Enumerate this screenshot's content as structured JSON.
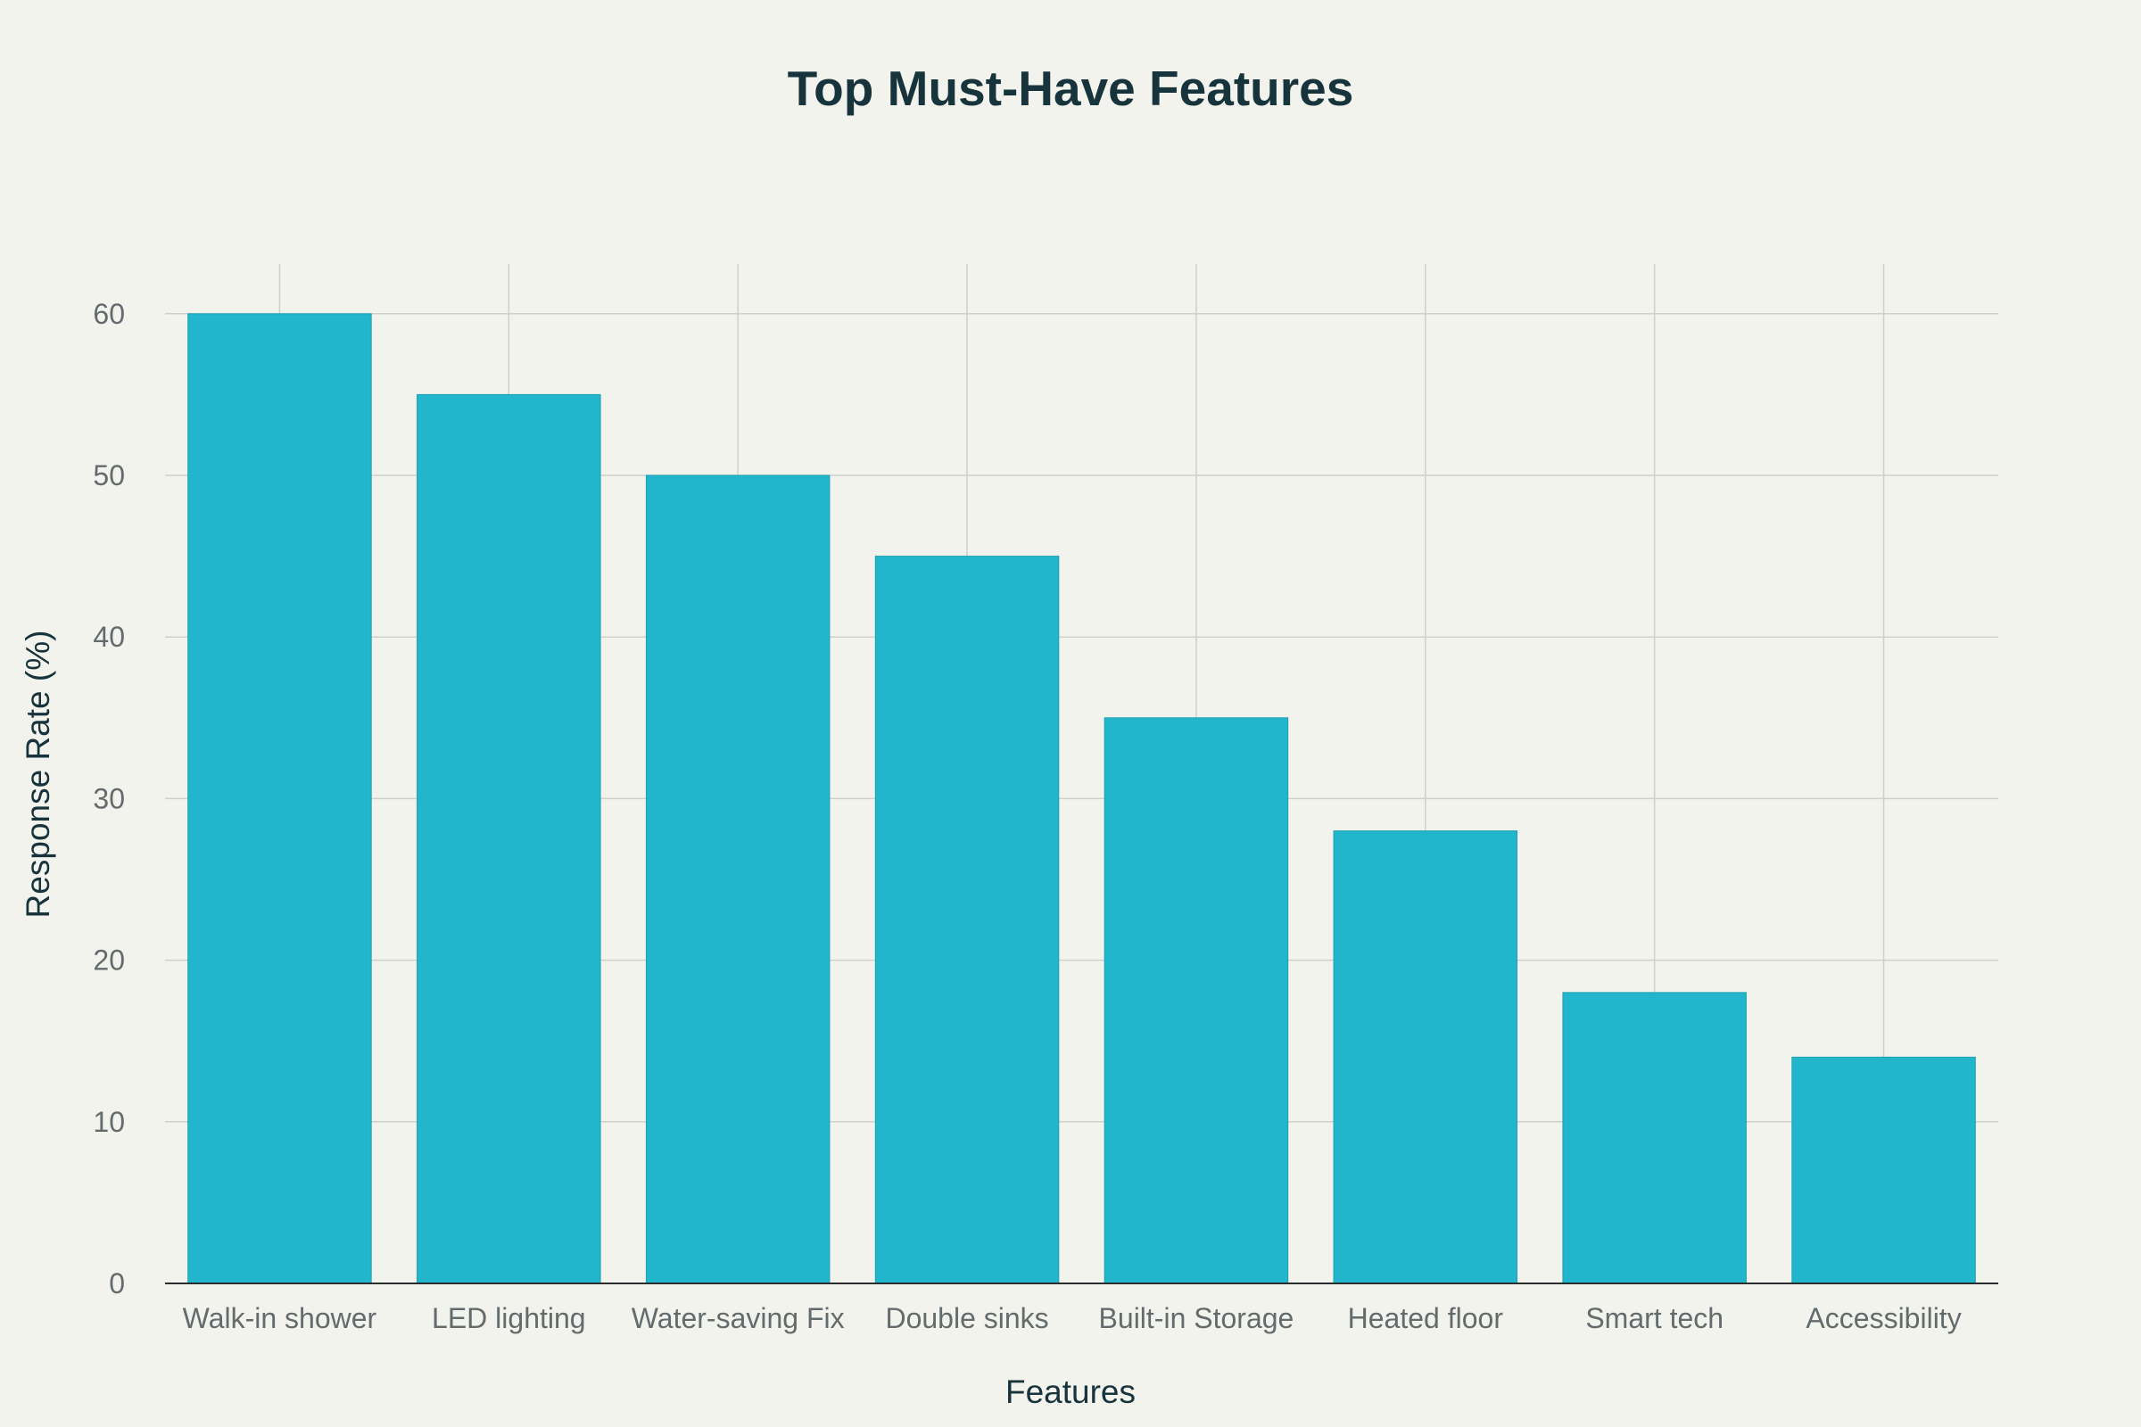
{
  "chart_data": {
    "type": "bar",
    "title": "Top Must-Have Features",
    "xlabel": "Features",
    "ylabel": "Response Rate (%)",
    "categories": [
      "Walk-in shower",
      "LED lighting",
      "Water-saving Fix",
      "Double sinks",
      "Built-in Storage",
      "Heated floor",
      "Smart tech",
      "Accessibility"
    ],
    "values": [
      60,
      55,
      50,
      45,
      35,
      28,
      18,
      14
    ],
    "ylim": [
      0,
      63
    ],
    "yticks": [
      0,
      10,
      20,
      30,
      40,
      50,
      60
    ],
    "grid": true,
    "bar_color": "#21b6cb"
  }
}
